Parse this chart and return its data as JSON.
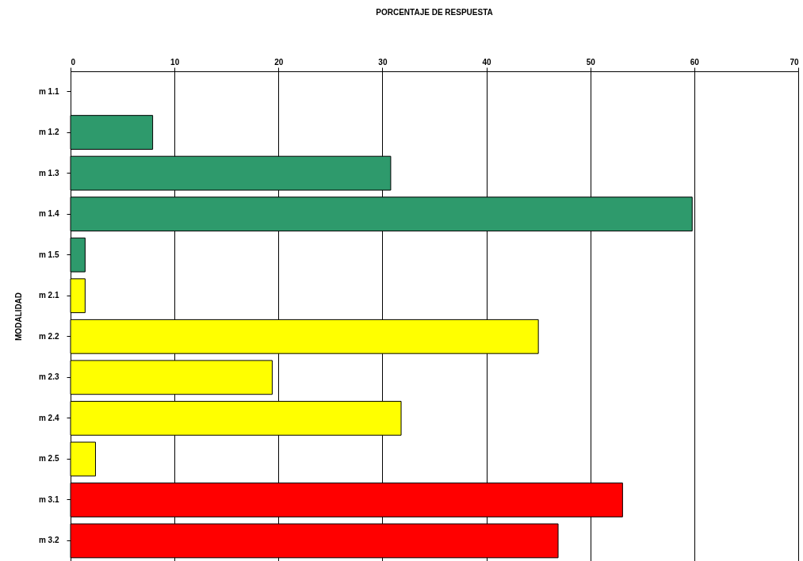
{
  "chart_data": {
    "type": "bar",
    "orientation": "horizontal",
    "title": "PORCENTAJE DE RESPUESTA",
    "ylabel": "MODALIDAD",
    "categories": [
      "m 1.1",
      "m 1.2",
      "m 1.3",
      "m 1.4",
      "m 1.5",
      "m 2.1",
      "m 2.2",
      "m 2.3",
      "m 2.4",
      "m 2.5",
      "m 3.1",
      "m 3.2"
    ],
    "values": [
      0,
      7.9,
      30.8,
      59.8,
      1.4,
      1.4,
      45.0,
      19.4,
      31.8,
      2.4,
      53.1,
      46.9
    ],
    "colors": [
      "#2e9a6c",
      "#2e9a6c",
      "#2e9a6c",
      "#2e9a6c",
      "#2e9a6c",
      "#ffff00",
      "#ffff00",
      "#ffff00",
      "#ffff00",
      "#ffff00",
      "#ff0000",
      "#ff0000"
    ],
    "xlim": [
      0,
      70
    ],
    "xticks": [
      0,
      10,
      20,
      30,
      40,
      50,
      60,
      70
    ],
    "grid": "x"
  }
}
